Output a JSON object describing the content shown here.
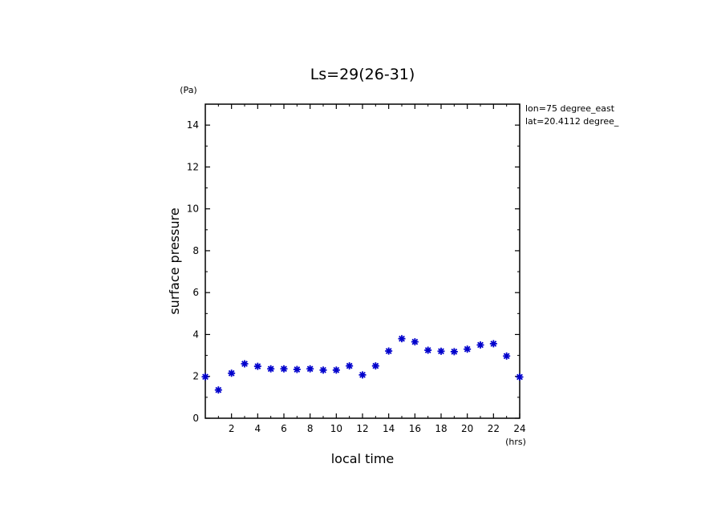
{
  "chart_data": {
    "type": "scatter",
    "title": "Ls=29(26-31)",
    "xlabel": "local time",
    "ylabel": "surface pressure",
    "x_unit": "(hrs)",
    "y_unit": "(Pa)",
    "annotations": [
      "lon=75 degree_east",
      "lat=20.4112 degree_"
    ],
    "xlim": [
      0,
      24
    ],
    "ylim": [
      0,
      15
    ],
    "xticks": [
      2,
      4,
      6,
      8,
      10,
      12,
      14,
      16,
      18,
      20,
      22,
      24
    ],
    "yticks": [
      0,
      2,
      4,
      6,
      8,
      10,
      12,
      14
    ],
    "marker_color": "#0000cc",
    "grid": false,
    "x": [
      0,
      1,
      2,
      3,
      4,
      5,
      6,
      7,
      8,
      9,
      10,
      11,
      12,
      13,
      14,
      15,
      16,
      17,
      18,
      19,
      20,
      21,
      22,
      23,
      24
    ],
    "y": [
      1.98,
      1.35,
      2.15,
      2.6,
      2.48,
      2.36,
      2.36,
      2.33,
      2.36,
      2.3,
      2.3,
      2.5,
      2.07,
      2.5,
      3.21,
      3.8,
      3.65,
      3.25,
      3.2,
      3.18,
      3.3,
      3.5,
      3.56,
      2.97,
      1.97
    ]
  }
}
